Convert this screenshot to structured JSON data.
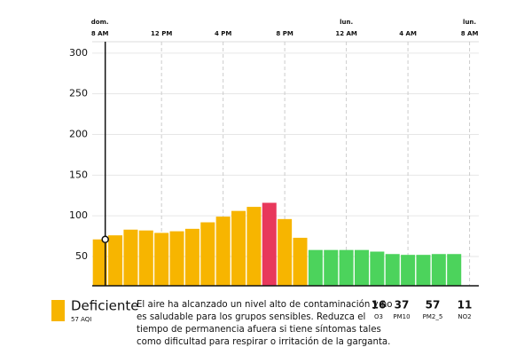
{
  "chart_data": {
    "type": "bar",
    "x": [
      0,
      1,
      2,
      3,
      4,
      5,
      6,
      7,
      8,
      9,
      10,
      11,
      12,
      13,
      14,
      15,
      16,
      17,
      18,
      19,
      20,
      21,
      22,
      23
    ],
    "values": [
      71,
      76,
      83,
      82,
      79,
      81,
      84,
      92,
      99,
      106,
      111,
      116,
      96,
      73,
      58,
      58,
      58,
      58,
      56,
      53,
      52,
      52,
      53,
      53
    ],
    "colors": [
      "#f7b500",
      "#f7b500",
      "#f7b500",
      "#f7b500",
      "#f7b500",
      "#f7b500",
      "#f7b500",
      "#f7b500",
      "#f7b500",
      "#f7b500",
      "#f7b500",
      "#e8385b",
      "#f7b500",
      "#f7b500",
      "#4cd35c",
      "#4cd35c",
      "#4cd35c",
      "#4cd35c",
      "#4cd35c",
      "#4cd35c",
      "#4cd35c",
      "#4cd35c",
      "#4cd35c",
      "#4cd35c"
    ],
    "xlim": [
      -0.5,
      24.6
    ],
    "xticks": [
      {
        "value": 0,
        "day": "dom.",
        "label": "8 AM"
      },
      {
        "value": 4,
        "label": "12 PM"
      },
      {
        "value": 8,
        "label": "4 PM"
      },
      {
        "value": 12,
        "label": "8 PM"
      },
      {
        "value": 16,
        "day": "lun.",
        "label": "12 AM"
      },
      {
        "value": 20,
        "label": "4 AM"
      },
      {
        "value": 24,
        "day": "lun.",
        "label": "8 AM"
      }
    ],
    "ylim": [
      14,
      314
    ],
    "yticks": [
      50,
      100,
      150,
      200,
      250,
      300
    ],
    "grid": true
  },
  "summary": {
    "category": "Deficiente",
    "color": "#f7b500",
    "aqi": "57 AQI",
    "message": [
      "El aire ha alcanzado un nivel alto de contaminación y no",
      "es saludable para los grupos sensibles. Reduzca el",
      "tiempo de permanencia afuera si tiene síntomas tales",
      "como dificultad para respirar o irritación de la garganta."
    ],
    "pollutants": [
      {
        "value": 16,
        "name": "O3"
      },
      {
        "value": 37,
        "name": "PM10"
      },
      {
        "value": 57,
        "name": "PM2_5"
      },
      {
        "value": 11,
        "name": "NO2"
      }
    ]
  }
}
